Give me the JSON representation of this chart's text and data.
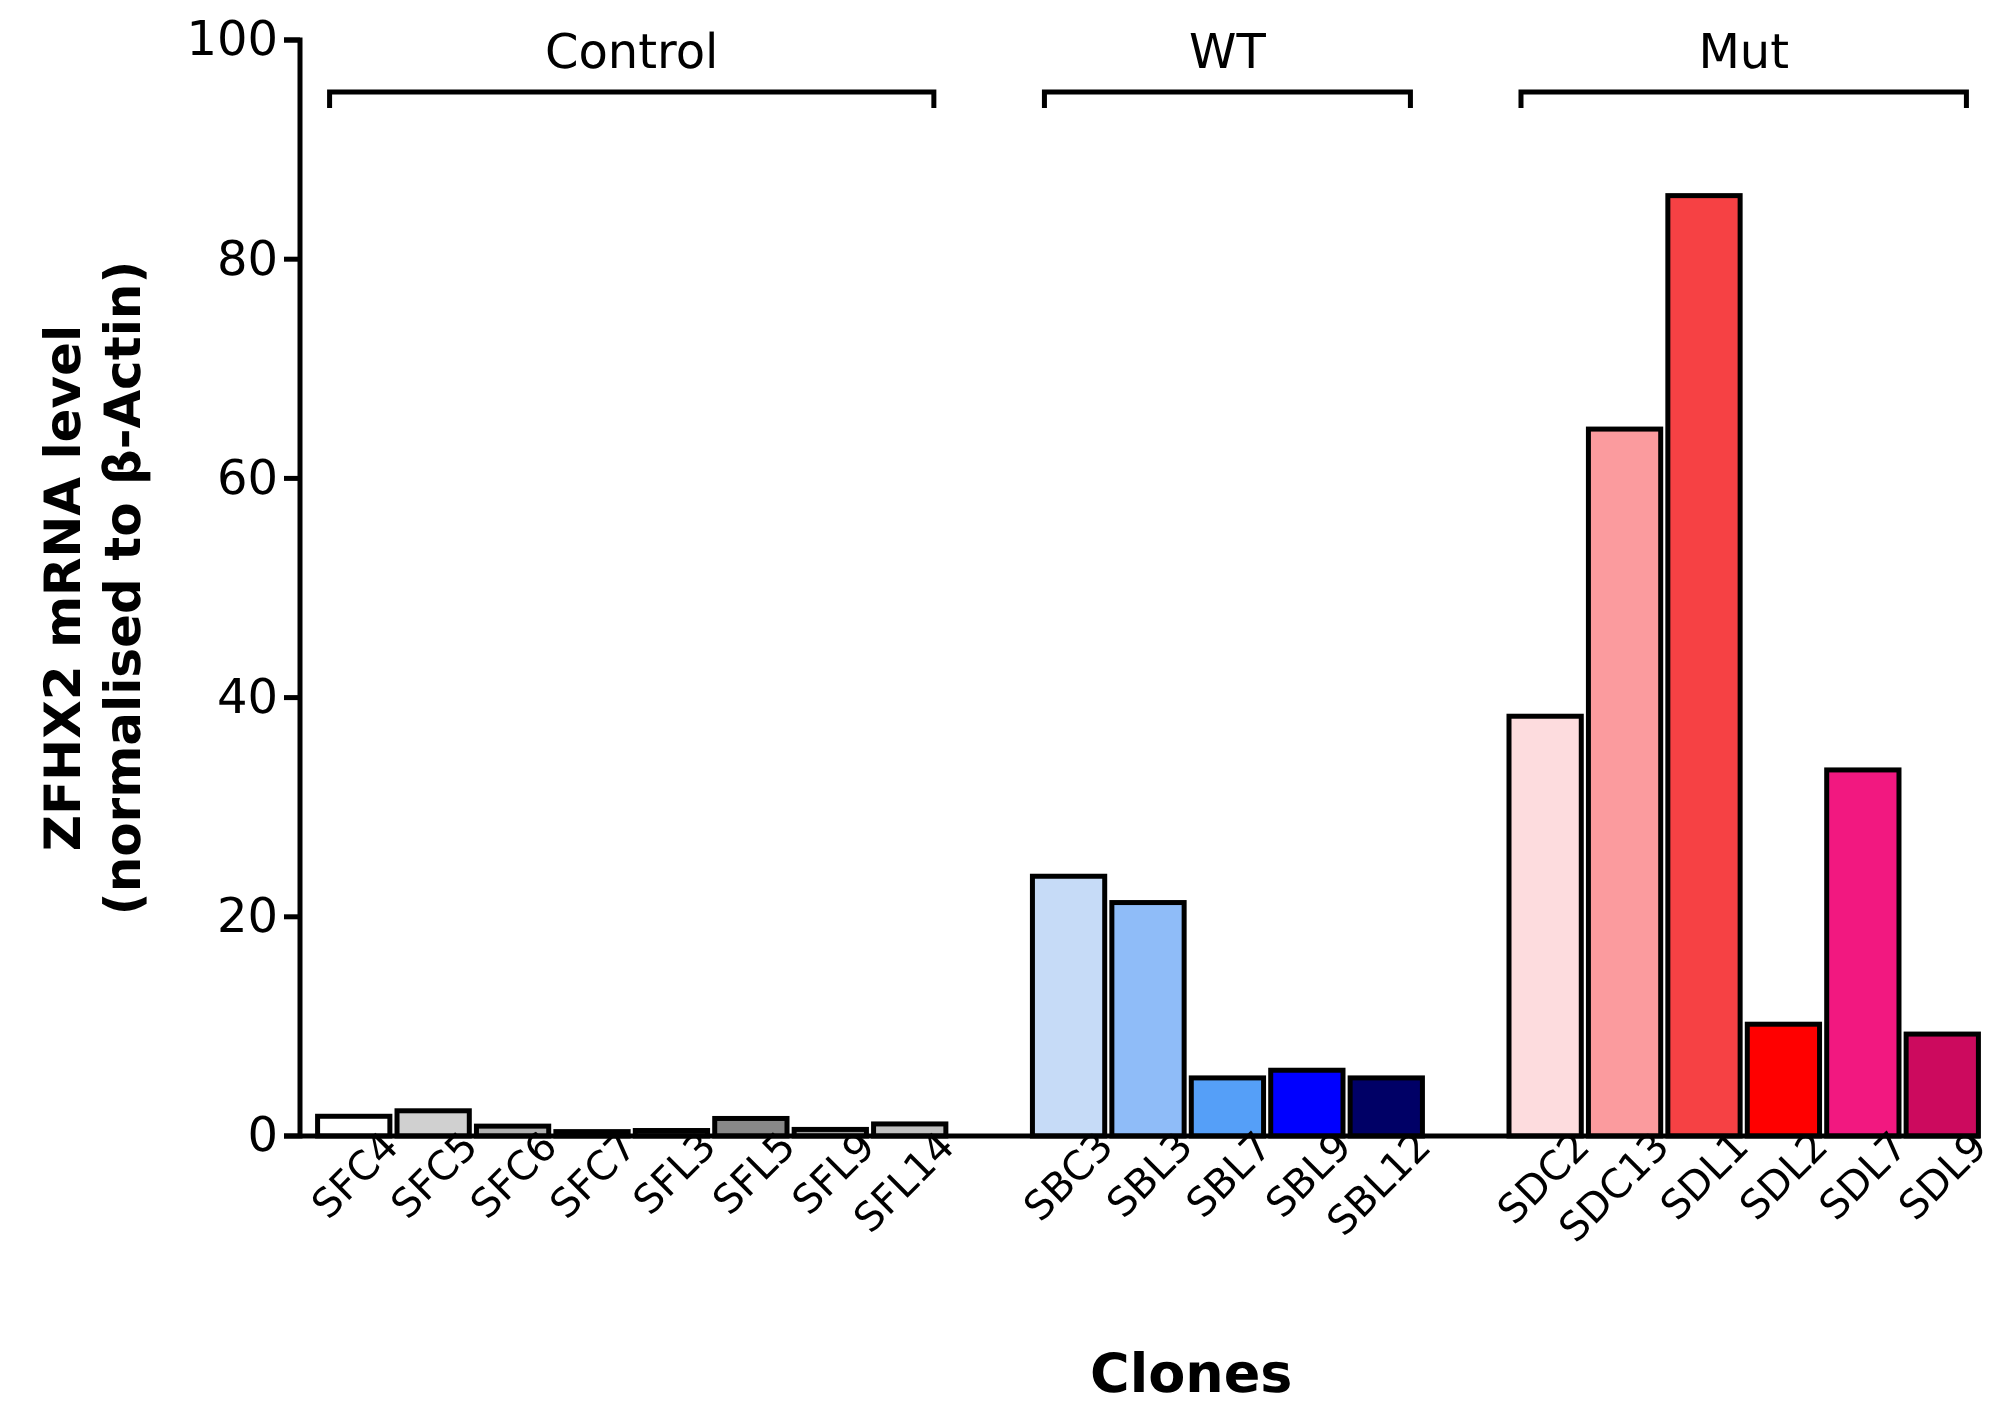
{
  "chart_data": {
    "type": "bar",
    "categories": [
      "SFC4",
      "SFC5",
      "SFC6",
      "SFC7",
      "SFL3",
      "SFL5",
      "SFL9",
      "SFL14",
      null,
      "SBC3",
      "SBL3",
      "SBL7",
      "SBL9",
      "SBL12",
      null,
      "SDC2",
      "SDC13",
      "SDL1",
      "SDL2",
      "SDL7",
      "SDL9"
    ],
    "values": [
      1.8,
      2.3,
      0.9,
      0.4,
      0.5,
      1.6,
      0.6,
      1.1,
      null,
      23.7,
      21.3,
      5.3,
      6.0,
      5.3,
      null,
      38.3,
      64.5,
      85.8,
      10.2,
      33.4,
      9.3
    ],
    "colors": [
      "#ffffff",
      "#d0d0d0",
      "#b0b0b0",
      "#404040",
      "#303030",
      "#888888",
      "#a0a0a0",
      "#c0c0c0",
      null,
      "#c6dbf7",
      "#8fbcf8",
      "#559ff8",
      "#0000ff",
      "#000066",
      null,
      "#fddcde",
      "#fb9b9e",
      "#f64144",
      "#ff0000",
      "#f21880",
      "#cc0a5e"
    ],
    "xlabel": "Clones",
    "ylabel": "ZFHX2 mRNA level\n(normalised to β-Actin)",
    "ylim": [
      0,
      100
    ],
    "yticks": [
      0,
      20,
      40,
      60,
      80,
      100
    ],
    "annotations": [
      "Control",
      "WT",
      "Mut"
    ]
  }
}
